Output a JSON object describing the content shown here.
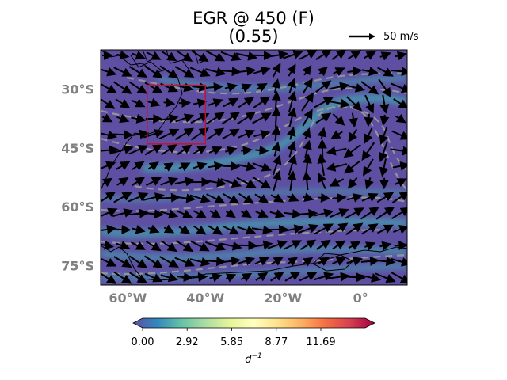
{
  "title": {
    "line1": "EGR @ 450 (F)",
    "line2": "(0.55)"
  },
  "reference_vector": {
    "label": "50 m/s",
    "speed_ms": 50
  },
  "map": {
    "lon_range": [
      -67,
      12
    ],
    "lat_range": [
      -80,
      -20
    ],
    "lat_ticks": [
      {
        "label": "30°S",
        "value": -30
      },
      {
        "label": "45°S",
        "value": -45
      },
      {
        "label": "60°S",
        "value": -60
      },
      {
        "label": "75°S",
        "value": -75
      }
    ],
    "lon_ticks": [
      {
        "label": "60°W",
        "value": -60
      },
      {
        "label": "40°W",
        "value": -40
      },
      {
        "label": "20°W",
        "value": -20
      },
      {
        "label": "0°",
        "value": 0
      }
    ],
    "region_box": {
      "lon_min": -55,
      "lon_max": -40,
      "lat_min": -44,
      "lat_max": -29,
      "color": "#c0143c"
    },
    "background_color": "#5e4fa2",
    "jet_color": "#3fa8b0"
  },
  "colorbar": {
    "ticks": [
      "0.00",
      "2.92",
      "5.85",
      "8.77",
      "11.69"
    ],
    "tick_values": [
      0,
      2.92,
      5.85,
      8.77,
      11.69
    ],
    "range": [
      0,
      14.6
    ],
    "unit": "d",
    "unit_exp": "−1",
    "colors": [
      "#5e4fa2",
      "#3288bd",
      "#66c2a5",
      "#abdda4",
      "#e6f598",
      "#ffffbf",
      "#fee08b",
      "#fdae61",
      "#f46d43",
      "#d53e4f",
      "#9e0142"
    ]
  }
}
